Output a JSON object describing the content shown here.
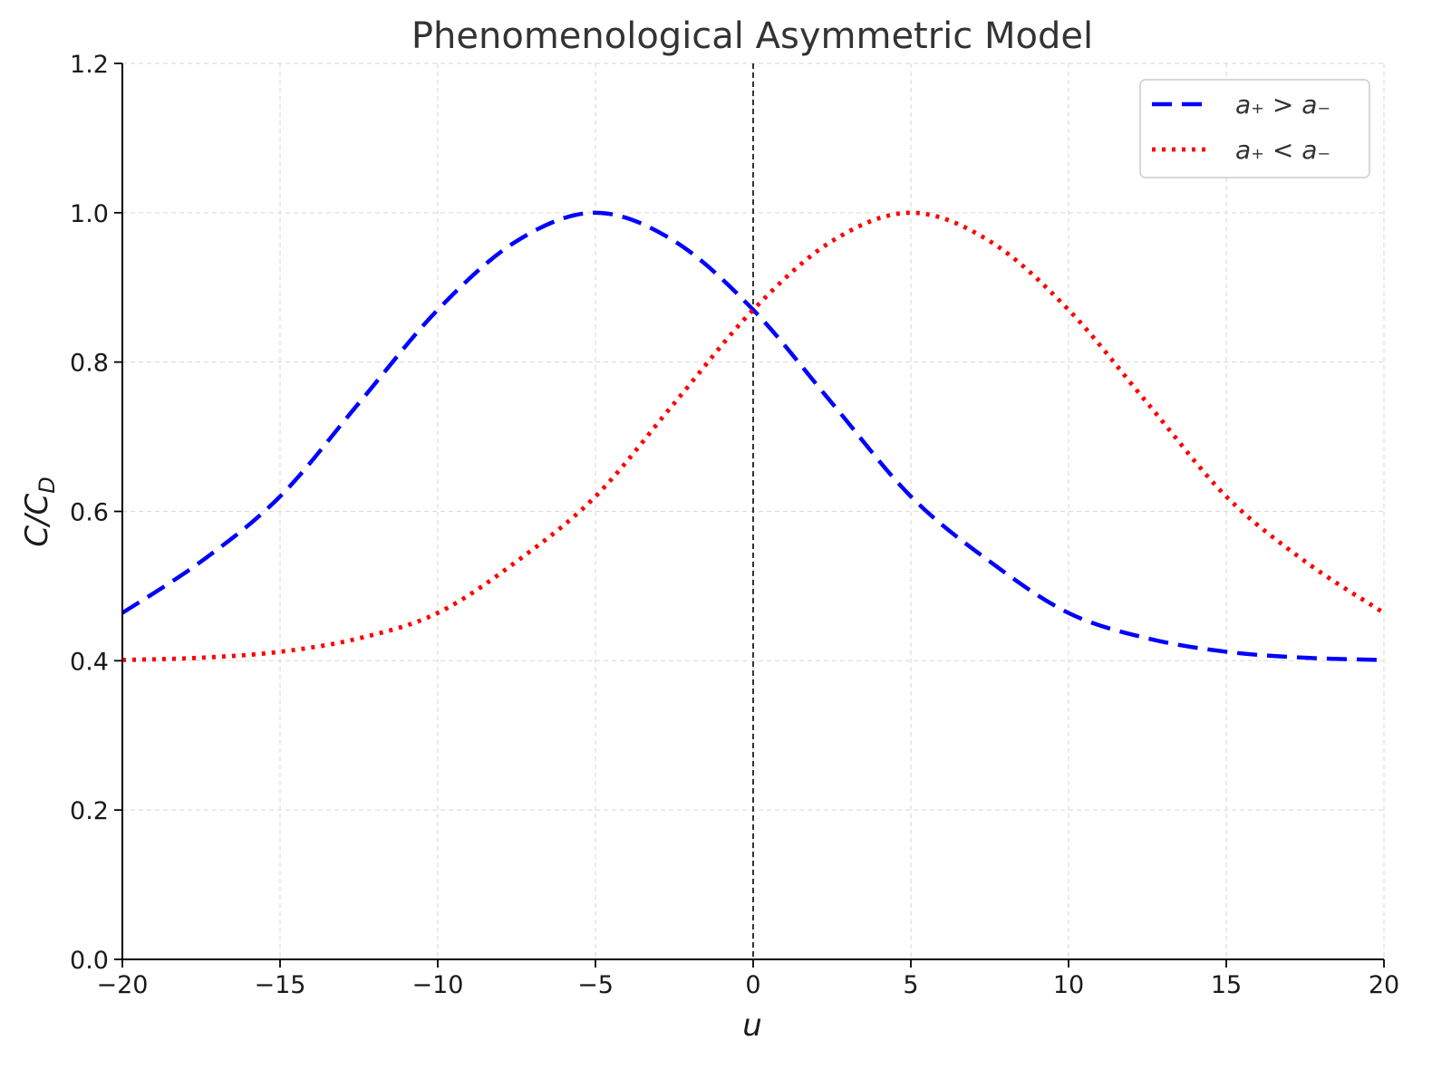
{
  "chart_data": {
    "type": "line",
    "title": "Phenomenological Asymmetric Model",
    "xlabel": "u",
    "ylabel": "C/C_D",
    "xlim": [
      -20,
      20
    ],
    "ylim": [
      0,
      1.2
    ],
    "xticks": [
      -20,
      -15,
      -10,
      -5,
      0,
      5,
      10,
      15,
      20
    ],
    "xtick_labels": [
      "−20",
      "−15",
      "−10",
      "−5",
      "0",
      "5",
      "10",
      "15",
      "20"
    ],
    "yticks": [
      0.0,
      0.2,
      0.4,
      0.6,
      0.8,
      1.0,
      1.2
    ],
    "ytick_labels": [
      "0.0",
      "0.2",
      "0.4",
      "0.6",
      "0.8",
      "1.0",
      "1.2"
    ],
    "grid": true,
    "legend_position": "top-right",
    "vertical_reference_line": 0,
    "x": [
      -20,
      -17.5,
      -15,
      -12.5,
      -10,
      -7.5,
      -5,
      -2.5,
      0,
      2.5,
      5,
      7.5,
      10,
      12.5,
      15,
      17.5,
      20
    ],
    "series": [
      {
        "name": "a₊ > a₋",
        "color": "#0000ff",
        "style": "dashed",
        "values": [
          0.464,
          0.533,
          0.62,
          0.745,
          0.87,
          0.962,
          1.0,
          0.962,
          0.87,
          0.745,
          0.62,
          0.533,
          0.464,
          0.43,
          0.412,
          0.404,
          0.401
        ]
      },
      {
        "name": "a₊ < a₋",
        "color": "#ff0000",
        "style": "dotted",
        "values": [
          0.401,
          0.404,
          0.412,
          0.43,
          0.464,
          0.533,
          0.62,
          0.745,
          0.87,
          0.962,
          1.0,
          0.962,
          0.87,
          0.745,
          0.62,
          0.533,
          0.464
        ]
      }
    ]
  }
}
